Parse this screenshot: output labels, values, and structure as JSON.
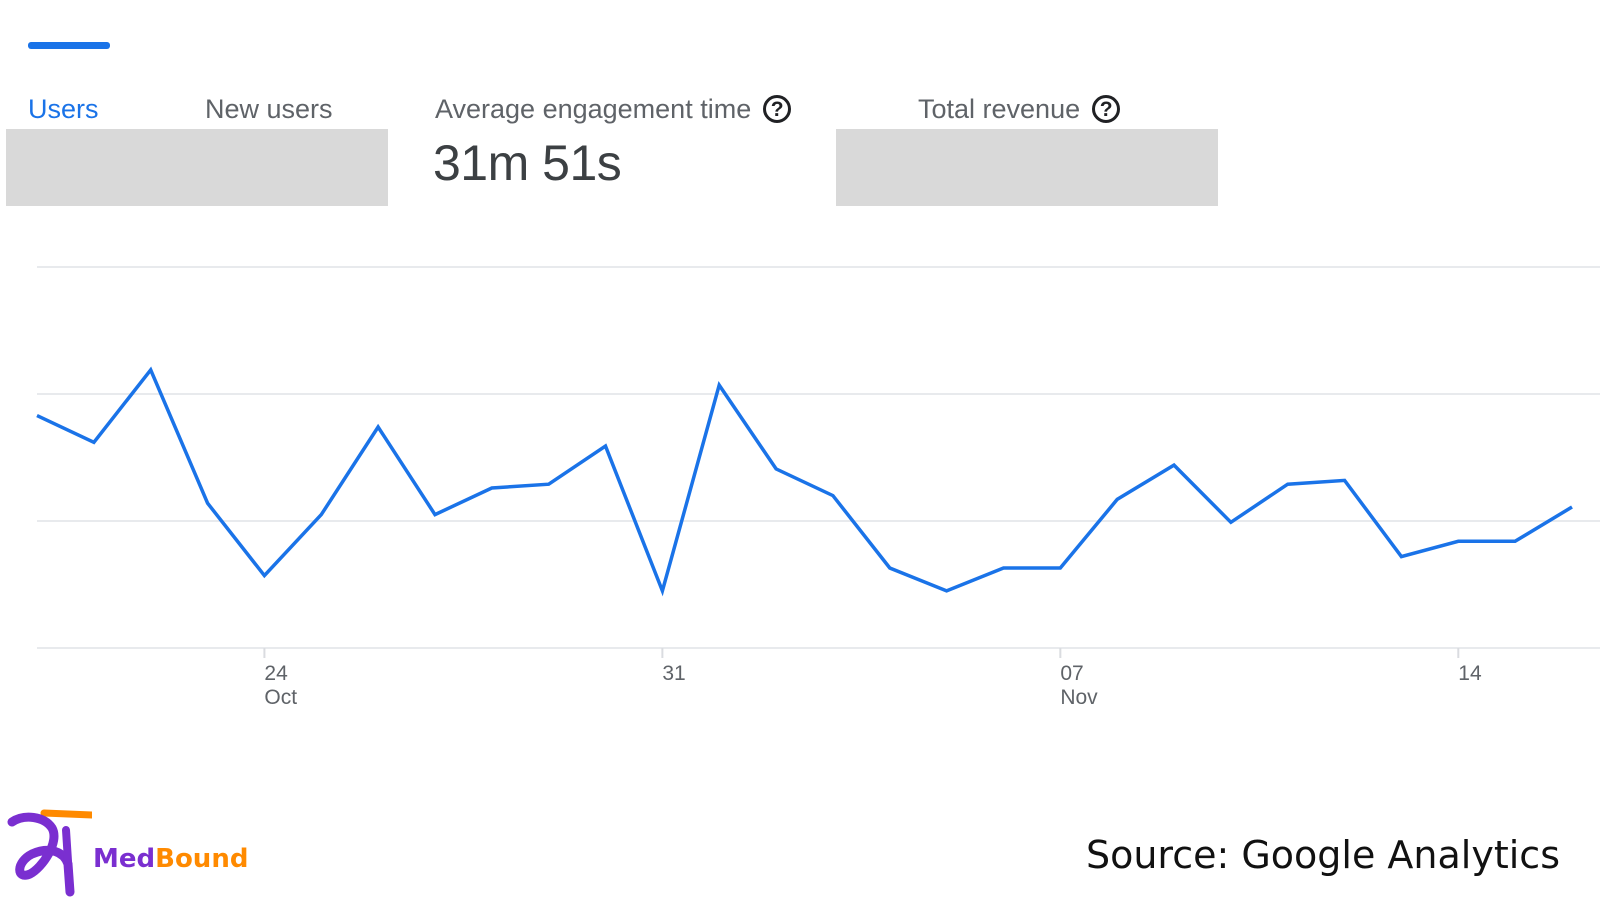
{
  "tabs": [
    {
      "label": "Users",
      "active": true
    },
    {
      "label": "New users",
      "active": false
    },
    {
      "label": "Average engagement time",
      "value": "31m 51s",
      "help": "?"
    },
    {
      "label": "Total revenue",
      "help": "?"
    }
  ],
  "chart_data": {
    "type": "line",
    "title": "",
    "xlabel": "",
    "ylabel": "",
    "x": [
      "Oct 20",
      "Oct 21",
      "Oct 22",
      "Oct 23",
      "Oct 24",
      "Oct 25",
      "Oct 26",
      "Oct 27",
      "Oct 28",
      "Oct 29",
      "Oct 30",
      "Oct 31",
      "Nov 01",
      "Nov 02",
      "Nov 03",
      "Nov 04",
      "Nov 05",
      "Nov 06",
      "Nov 07",
      "Nov 08",
      "Nov 09",
      "Nov 10",
      "Nov 11",
      "Nov 12",
      "Nov 13",
      "Nov 14",
      "Nov 15",
      "Nov 16"
    ],
    "series": [
      {
        "values": [
          0.61,
          0.54,
          0.73,
          0.38,
          0.19,
          0.35,
          0.58,
          0.35,
          0.42,
          0.43,
          0.53,
          0.15,
          0.69,
          0.47,
          0.4,
          0.21,
          0.15,
          0.21,
          0.21,
          0.39,
          0.48,
          0.33,
          0.43,
          0.44,
          0.24,
          0.28,
          0.28,
          0.37
        ]
      }
    ],
    "x_ticks": [
      {
        "index": 4,
        "day": "24",
        "month": "Oct"
      },
      {
        "index": 11,
        "day": "31",
        "month": ""
      },
      {
        "index": 18,
        "day": "07",
        "month": "Nov"
      },
      {
        "index": 25,
        "day": "14",
        "month": ""
      }
    ],
    "y_gridlines": 4,
    "y_tick_labels_visible": false,
    "line_color": "#1a73e8",
    "grid": true
  },
  "footer": {
    "source": "Source: Google Analytics",
    "logo": {
      "part1": "Med",
      "part2": "Bound"
    }
  },
  "colors": {
    "accent": "#1a73e8",
    "redaction": "#d9d9d9"
  }
}
